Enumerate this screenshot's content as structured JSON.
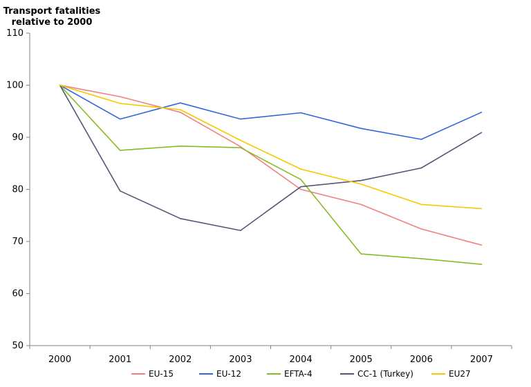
{
  "chart_data": {
    "type": "line",
    "title": "",
    "ylabel_lines": [
      "Transport fatalities",
      "relative to 2000"
    ],
    "xlabel": "",
    "categories": [
      "2000",
      "2001",
      "2002",
      "2003",
      "2004",
      "2005",
      "2006",
      "2007"
    ],
    "ylim": [
      50,
      110
    ],
    "yticks": [
      50,
      60,
      70,
      80,
      90,
      100,
      110
    ],
    "grid": false,
    "legend_position": "bottom",
    "series": [
      {
        "name": "EU-15",
        "color": "#f08080",
        "values": [
          100,
          97.8,
          94.8,
          88.2,
          80.0,
          77.1,
          72.4,
          69.3
        ]
      },
      {
        "name": "EU-12",
        "color": "#3366dd",
        "values": [
          100,
          93.5,
          96.6,
          93.5,
          94.7,
          91.7,
          89.6,
          94.8
        ]
      },
      {
        "name": "EFTA-4",
        "color": "#88bb22",
        "values": [
          100,
          87.5,
          88.3,
          88.0,
          81.9,
          67.6,
          66.7,
          65.6
        ]
      },
      {
        "name": "CC-1 (Turkey)",
        "color": "#555577",
        "values": [
          100,
          79.7,
          74.4,
          72.1,
          80.5,
          81.7,
          84.1,
          90.9
        ]
      },
      {
        "name": "EU27",
        "color": "#f5c800",
        "values": [
          100,
          96.5,
          95.3,
          89.4,
          83.9,
          81.0,
          77.1,
          76.3
        ]
      }
    ]
  }
}
